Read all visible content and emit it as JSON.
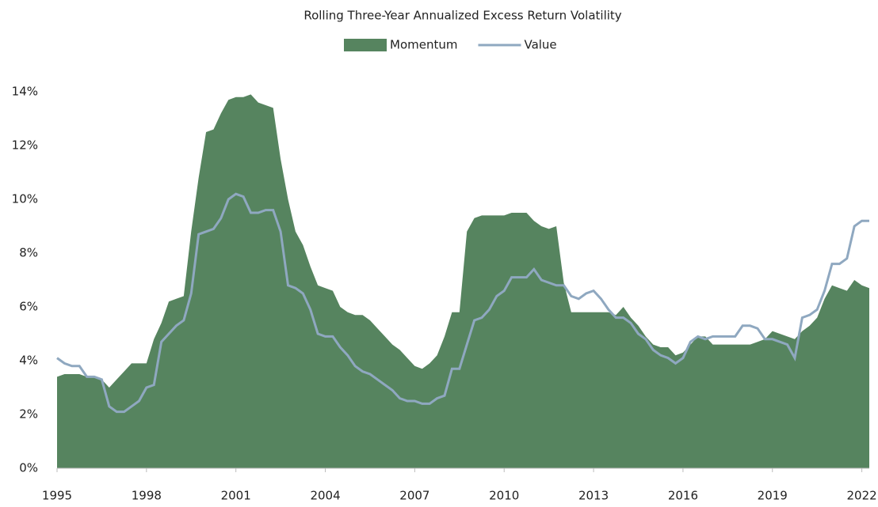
{
  "chart_data": {
    "type": "area-line",
    "title": "Rolling Three-Year  Annualized Excess Return Volatility",
    "x": [
      1995,
      1995.25,
      1995.5,
      1995.75,
      1996,
      1996.25,
      1996.5,
      1996.75,
      1997,
      1997.25,
      1997.5,
      1997.75,
      1998,
      1998.25,
      1998.5,
      1998.75,
      1999,
      1999.25,
      1999.5,
      1999.75,
      2000,
      2000.25,
      2000.5,
      2000.75,
      2001,
      2001.25,
      2001.5,
      2001.75,
      2002,
      2002.25,
      2002.5,
      2002.75,
      2003,
      2003.25,
      2003.5,
      2003.75,
      2004,
      2004.25,
      2004.5,
      2004.75,
      2005,
      2005.25,
      2005.5,
      2005.75,
      2006,
      2006.25,
      2006.5,
      2006.75,
      2007,
      2007.25,
      2007.5,
      2007.75,
      2008,
      2008.25,
      2008.5,
      2008.75,
      2009,
      2009.25,
      2009.5,
      2009.75,
      2010,
      2010.25,
      2010.5,
      2010.75,
      2011,
      2011.25,
      2011.5,
      2011.75,
      2012,
      2012.25,
      2012.5,
      2012.75,
      2013,
      2013.25,
      2013.5,
      2013.75,
      2014,
      2014.25,
      2014.5,
      2014.75,
      2015,
      2015.25,
      2015.5,
      2015.75,
      2016,
      2016.25,
      2016.5,
      2016.75,
      2017,
      2017.25,
      2017.5,
      2017.75,
      2018,
      2018.25,
      2018.5,
      2018.75,
      2019,
      2019.25,
      2019.5,
      2019.75,
      2020,
      2020.25,
      2020.5,
      2020.75,
      2021,
      2021.25,
      2021.5,
      2021.75,
      2022,
      2022.25
    ],
    "series": [
      {
        "name": "Momentum",
        "color": "#56845f",
        "style": "area",
        "values": [
          3.4,
          3.5,
          3.5,
          3.5,
          3.4,
          3.4,
          3.3,
          3.0,
          3.3,
          3.6,
          3.9,
          3.9,
          3.9,
          4.8,
          5.4,
          6.2,
          6.3,
          6.4,
          8.8,
          10.8,
          12.5,
          12.6,
          13.2,
          13.7,
          13.8,
          13.8,
          13.9,
          13.6,
          13.5,
          13.4,
          11.5,
          10.0,
          8.8,
          8.3,
          7.5,
          6.8,
          6.7,
          6.6,
          6.0,
          5.8,
          5.7,
          5.7,
          5.5,
          5.2,
          4.9,
          4.6,
          4.4,
          4.1,
          3.8,
          3.7,
          3.9,
          4.2,
          4.9,
          5.8,
          5.8,
          8.8,
          9.3,
          9.4,
          9.4,
          9.4,
          9.4,
          9.5,
          9.5,
          9.5,
          9.2,
          9.0,
          8.9,
          9.0,
          6.9,
          5.8,
          5.8,
          5.8,
          5.8,
          5.8,
          5.8,
          5.7,
          6.0,
          5.6,
          5.3,
          4.9,
          4.6,
          4.5,
          4.5,
          4.2,
          4.3,
          4.6,
          4.9,
          4.9,
          4.6,
          4.6,
          4.6,
          4.6,
          4.6,
          4.6,
          4.7,
          4.8,
          5.1,
          5.0,
          4.9,
          4.8,
          5.1,
          5.3,
          5.6,
          6.3,
          6.8,
          6.7,
          6.6,
          7.0,
          6.8,
          6.7
        ]
      },
      {
        "name": "Value",
        "color": "#8fa8c0",
        "style": "line",
        "values": [
          4.1,
          3.9,
          3.8,
          3.8,
          3.4,
          3.4,
          3.3,
          2.3,
          2.1,
          2.1,
          2.3,
          2.5,
          3.0,
          3.1,
          4.7,
          5.0,
          5.3,
          5.5,
          6.5,
          8.7,
          8.8,
          8.9,
          9.3,
          10.0,
          10.2,
          10.1,
          9.5,
          9.5,
          9.6,
          9.6,
          8.8,
          6.8,
          6.7,
          6.5,
          5.9,
          5.0,
          4.9,
          4.9,
          4.5,
          4.2,
          3.8,
          3.6,
          3.5,
          3.3,
          3.1,
          2.9,
          2.6,
          2.5,
          2.5,
          2.4,
          2.4,
          2.6,
          2.7,
          3.7,
          3.7,
          4.6,
          5.5,
          5.6,
          5.9,
          6.4,
          6.6,
          7.1,
          7.1,
          7.1,
          7.4,
          7.0,
          6.9,
          6.8,
          6.8,
          6.4,
          6.3,
          6.5,
          6.6,
          6.3,
          5.9,
          5.6,
          5.6,
          5.4,
          5.0,
          4.8,
          4.4,
          4.2,
          4.1,
          3.9,
          4.1,
          4.7,
          4.9,
          4.8,
          4.9,
          4.9,
          4.9,
          4.9,
          5.3,
          5.3,
          5.2,
          4.8,
          4.8,
          4.7,
          4.6,
          4.1,
          5.6,
          5.7,
          5.9,
          6.6,
          7.6,
          7.6,
          7.8,
          9.0,
          9.2,
          9.2
        ]
      }
    ],
    "xlim": [
      1995,
      2022.25
    ],
    "xticks": [
      1995,
      1998,
      2001,
      2004,
      2007,
      2010,
      2013,
      2016,
      2019,
      2022
    ],
    "ylim": [
      0,
      14
    ],
    "yticks": [
      {
        "value": 0,
        "label": "0%"
      },
      {
        "value": 2,
        "label": "2%"
      },
      {
        "value": 4,
        "label": "4%"
      },
      {
        "value": 6,
        "label": "6%"
      },
      {
        "value": 8,
        "label": "8%"
      },
      {
        "value": 10,
        "label": "10%"
      },
      {
        "value": 12,
        "label": "12%"
      },
      {
        "value": 14,
        "label": "14%"
      }
    ],
    "grid": false,
    "legend": "top"
  }
}
